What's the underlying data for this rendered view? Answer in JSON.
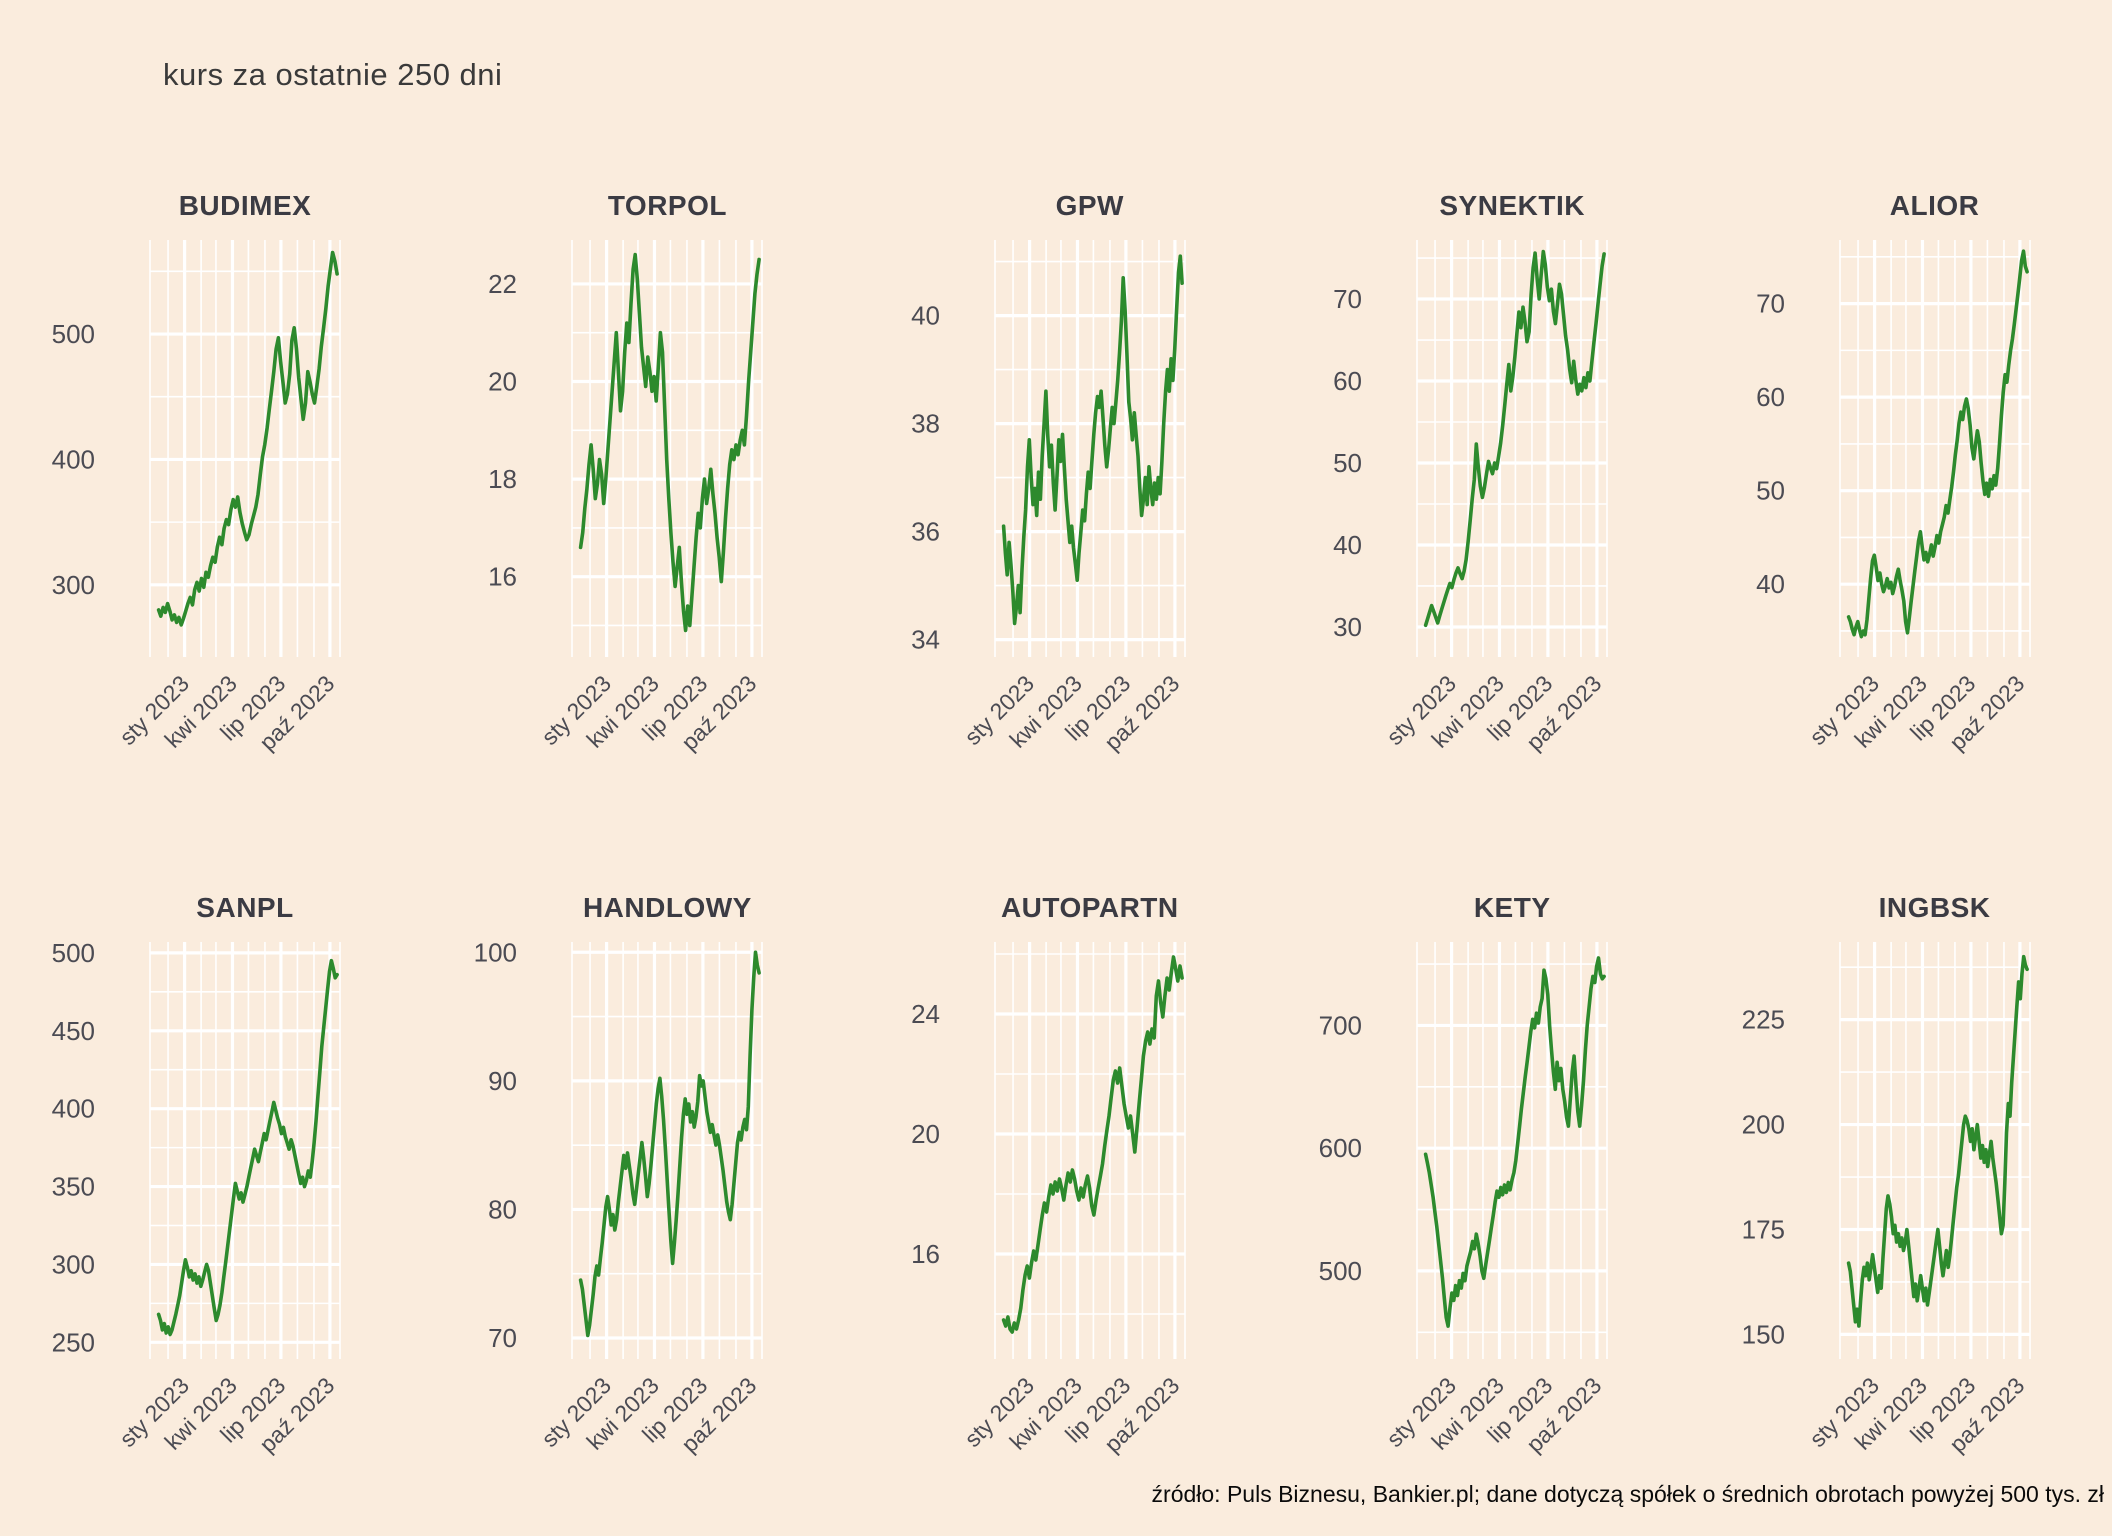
{
  "page": {
    "title": "kurs za ostatnie 250 dni",
    "footer": "źródło: Puls Biznesu, Bankier.pl; dane dotyczą spółek o średnich obrotach powyżej 500 tys. zł"
  },
  "colors": {
    "background": "#faecdd",
    "grid": "#ffffff",
    "line": "#2d8a2d",
    "chart_title_text": "#3b3b43",
    "axis_text": "#4b4b53",
    "footer_text": "#0a0a0a"
  },
  "x_axis": {
    "labels": [
      "sty 2023",
      "kwi 2023",
      "lip 2023",
      "paź 2023"
    ],
    "major_fractions": [
      0.182,
      0.434,
      0.689,
      0.947
    ],
    "minor_fractions": [
      0.0,
      0.095,
      0.269,
      0.347,
      0.518,
      0.605,
      0.776,
      0.863,
      1.0
    ]
  },
  "chart_data": [
    {
      "type": "line",
      "title": "BUDIMEX",
      "ylabel": "",
      "y_ticks": [
        300,
        400,
        500
      ],
      "ylim": [
        252,
        575
      ],
      "values": [
        280,
        275,
        282,
        278,
        285,
        279,
        272,
        276,
        270,
        274,
        268,
        273,
        279,
        285,
        290,
        284,
        296,
        302,
        295,
        305,
        298,
        310,
        306,
        315,
        322,
        318,
        330,
        338,
        332,
        345,
        352,
        348,
        360,
        368,
        362,
        370,
        358,
        349,
        342,
        336,
        340,
        348,
        355,
        362,
        372,
        388,
        402,
        412,
        425,
        440,
        455,
        470,
        488,
        497,
        478,
        462,
        445,
        452,
        468,
        495,
        505,
        488,
        465,
        448,
        432,
        445,
        470,
        462,
        452,
        445,
        458,
        472,
        490,
        505,
        520,
        538,
        552,
        565,
        558,
        548
      ]
    },
    {
      "type": "line",
      "title": "TORPOL",
      "ylabel": "",
      "y_ticks": [
        16,
        18,
        20,
        22
      ],
      "ylim": [
        14.6,
        22.9
      ],
      "values": [
        16.6,
        16.9,
        17.4,
        17.8,
        18.3,
        18.7,
        18.2,
        17.6,
        17.9,
        18.4,
        18.1,
        17.5,
        18.0,
        18.6,
        19.2,
        19.8,
        20.4,
        21.0,
        20.2,
        19.4,
        19.8,
        20.6,
        21.2,
        20.8,
        21.6,
        22.3,
        22.6,
        22.1,
        21.4,
        20.7,
        20.3,
        19.9,
        20.5,
        20.2,
        19.8,
        20.1,
        19.6,
        20.3,
        21.0,
        20.6,
        19.5,
        18.4,
        17.6,
        16.9,
        16.3,
        15.8,
        16.2,
        16.6,
        15.9,
        15.3,
        14.9,
        15.4,
        15.0,
        15.6,
        16.2,
        16.8,
        17.3,
        17.0,
        17.6,
        18.0,
        17.5,
        17.8,
        18.2,
        17.7,
        17.3,
        16.8,
        16.4,
        15.9,
        16.5,
        17.2,
        17.8,
        18.3,
        18.6,
        18.4,
        18.7,
        18.5,
        18.8,
        19.0,
        18.7,
        19.3,
        20.0,
        20.6,
        21.2,
        21.8,
        22.2,
        22.5
      ]
    },
    {
      "type": "line",
      "title": "GPW",
      "ylabel": "",
      "y_ticks": [
        34,
        36,
        38,
        40
      ],
      "ylim": [
        33.9,
        41.4
      ],
      "values": [
        36.1,
        35.6,
        35.2,
        35.8,
        35.4,
        34.9,
        34.3,
        34.6,
        35.0,
        34.5,
        35.3,
        35.9,
        36.4,
        37.2,
        37.7,
        37.0,
        36.5,
        36.8,
        36.3,
        37.1,
        36.6,
        37.4,
        38.0,
        38.6,
        37.8,
        37.2,
        37.6,
        36.9,
        36.4,
        37.0,
        37.7,
        37.3,
        37.8,
        37.2,
        36.6,
        36.2,
        35.8,
        36.1,
        35.7,
        35.4,
        35.1,
        35.6,
        36.0,
        36.4,
        36.2,
        36.7,
        37.1,
        36.8,
        37.3,
        37.8,
        38.2,
        38.5,
        38.3,
        38.6,
        38.1,
        37.6,
        37.2,
        37.5,
        37.9,
        38.3,
        38.0,
        38.4,
        38.8,
        39.3,
        39.9,
        40.7,
        40.1,
        39.3,
        38.4,
        38.1,
        37.7,
        38.2,
        37.8,
        37.4,
        36.8,
        36.3,
        36.6,
        37.0,
        36.5,
        37.2,
        36.8,
        36.5,
        36.9,
        36.6,
        37.0,
        36.7,
        37.3,
        38.0,
        38.6,
        39.0,
        38.6,
        39.2,
        38.8,
        39.4,
        40.1,
        40.8,
        41.1,
        40.6
      ]
    },
    {
      "type": "line",
      "title": "SYNEKTIK",
      "ylabel": "",
      "y_ticks": [
        30,
        40,
        50,
        60,
        70
      ],
      "ylim": [
        27.8,
        77.2
      ],
      "values": [
        30.2,
        31.0,
        31.8,
        32.6,
        31.9,
        31.2,
        30.5,
        31.4,
        32.2,
        33.0,
        33.8,
        34.6,
        35.3,
        34.8,
        35.8,
        36.6,
        37.2,
        36.5,
        35.9,
        36.8,
        38.2,
        40.5,
        43.0,
        45.6,
        48.0,
        52.3,
        49.5,
        47.2,
        45.8,
        47.0,
        48.6,
        50.2,
        49.4,
        48.7,
        50.0,
        49.3,
        50.8,
        52.4,
        54.6,
        57.0,
        59.5,
        62.0,
        58.8,
        60.5,
        63.0,
        65.8,
        68.4,
        66.5,
        69.0,
        67.2,
        64.8,
        66.0,
        70.5,
        73.8,
        75.6,
        72.4,
        70.0,
        73.0,
        75.8,
        74.2,
        71.5,
        69.8,
        71.2,
        68.5,
        67.0,
        69.4,
        71.8,
        70.6,
        68.0,
        65.5,
        63.8,
        61.5,
        59.8,
        62.4,
        60.2,
        58.4,
        59.6,
        58.8,
        60.4,
        59.2,
        61.0,
        60.0,
        62.5,
        64.8,
        67.0,
        69.5,
        71.8,
        74.0,
        75.5
      ]
    },
    {
      "type": "line",
      "title": "ALIOR",
      "ylabel": "",
      "y_ticks": [
        40,
        50,
        60,
        70
      ],
      "ylim": [
        33.5,
        76.8
      ],
      "values": [
        36.5,
        36.0,
        35.2,
        34.6,
        35.4,
        36.0,
        35.1,
        34.4,
        35.0,
        34.6,
        36.2,
        38.4,
        40.6,
        42.5,
        43.1,
        41.8,
        40.4,
        41.2,
        40.0,
        39.2,
        39.8,
        40.6,
        39.6,
        40.2,
        39.0,
        39.8,
        40.8,
        41.6,
        40.4,
        39.4,
        38.2,
        36.0,
        34.8,
        36.4,
        38.2,
        39.8,
        41.4,
        43.0,
        44.6,
        45.6,
        44.0,
        42.6,
        43.4,
        42.4,
        43.2,
        44.2,
        43.0,
        44.0,
        45.2,
        44.4,
        45.6,
        46.4,
        47.2,
        48.4,
        47.6,
        49.0,
        50.4,
        52.0,
        53.8,
        55.4,
        57.2,
        58.4,
        57.6,
        59.0,
        59.8,
        58.8,
        57.0,
        54.6,
        53.4,
        55.0,
        56.4,
        55.2,
        53.0,
        51.0,
        49.6,
        50.8,
        49.4,
        51.2,
        50.2,
        51.6,
        50.6,
        52.4,
        55.0,
        58.0,
        60.5,
        62.4,
        61.6,
        63.4,
        65.0,
        66.2,
        67.8,
        69.4,
        71.0,
        72.8,
        74.6,
        75.6,
        74.0,
        73.4
      ]
    },
    {
      "type": "line",
      "title": "SANPL",
      "ylabel": "",
      "y_ticks": [
        250,
        300,
        350,
        400,
        450,
        500
      ],
      "ylim": [
        247,
        507
      ],
      "values": [
        268,
        264,
        258,
        262,
        256,
        260,
        255,
        258,
        263,
        268,
        274,
        280,
        288,
        296,
        303,
        298,
        292,
        296,
        290,
        294,
        288,
        292,
        286,
        290,
        295,
        300,
        296,
        288,
        280,
        272,
        264,
        268,
        274,
        282,
        292,
        302,
        312,
        322,
        332,
        342,
        352,
        347,
        342,
        346,
        340,
        345,
        350,
        356,
        362,
        368,
        374,
        370,
        366,
        372,
        378,
        384,
        380,
        386,
        392,
        398,
        404,
        399,
        394,
        390,
        384,
        388,
        382,
        378,
        374,
        380,
        376,
        370,
        364,
        358,
        352,
        356,
        350,
        354,
        360,
        356,
        366,
        378,
        392,
        408,
        424,
        440,
        452,
        464,
        476,
        488,
        495,
        490,
        484,
        486
      ]
    },
    {
      "type": "line",
      "title": "HANDLOWY",
      "ylabel": "",
      "y_ticks": [
        70,
        80,
        90,
        100
      ],
      "ylim": [
        69.3,
        100.8
      ],
      "values": [
        74.5,
        73.8,
        72.6,
        71.4,
        70.2,
        71.0,
        72.2,
        73.4,
        74.8,
        75.6,
        74.9,
        76.2,
        77.4,
        78.8,
        80.2,
        81.0,
        80.0,
        78.8,
        79.6,
        78.4,
        79.2,
        80.6,
        81.8,
        83.0,
        84.2,
        83.2,
        84.4,
        83.4,
        82.4,
        81.2,
        80.4,
        81.6,
        82.8,
        84.0,
        85.2,
        84.0,
        82.6,
        81.0,
        82.0,
        83.4,
        85.0,
        86.6,
        88.2,
        89.4,
        90.2,
        88.8,
        87.0,
        84.8,
        82.4,
        80.0,
        77.6,
        75.8,
        77.4,
        79.2,
        81.2,
        83.4,
        85.6,
        87.4,
        88.6,
        87.4,
        88.2,
        86.8,
        87.6,
        86.4,
        87.2,
        88.4,
        90.4,
        89.6,
        90.0,
        88.8,
        87.6,
        86.8,
        86.0,
        86.6,
        85.8,
        85.0,
        85.8,
        85.0,
        84.0,
        83.0,
        81.8,
        80.6,
        79.8,
        79.2,
        80.4,
        82.0,
        83.6,
        85.2,
        86.0,
        85.4,
        86.4,
        87.0,
        86.2,
        88.0,
        92.0,
        95.5,
        98.0,
        100.0,
        99.0,
        98.4
      ]
    },
    {
      "type": "line",
      "title": "AUTOPARTN",
      "ylabel": "",
      "y_ticks": [
        16,
        20,
        24
      ],
      "ylim": [
        12.9,
        26.4
      ],
      "values": [
        13.8,
        13.6,
        13.9,
        13.5,
        13.4,
        13.7,
        13.5,
        13.8,
        14.2,
        14.8,
        15.3,
        15.6,
        15.2,
        15.7,
        16.1,
        15.8,
        16.3,
        16.8,
        17.3,
        17.7,
        17.4,
        17.9,
        18.3,
        18.0,
        18.4,
        18.1,
        18.5,
        18.2,
        17.8,
        18.3,
        18.7,
        18.4,
        18.8,
        18.5,
        18.1,
        17.8,
        18.2,
        17.9,
        18.3,
        18.6,
        18.2,
        17.6,
        17.3,
        17.8,
        18.2,
        18.6,
        19.0,
        19.6,
        20.1,
        20.6,
        21.2,
        21.8,
        22.1,
        21.7,
        22.2,
        21.6,
        21.0,
        20.6,
        20.2,
        20.6,
        20.0,
        19.4,
        20.2,
        21.0,
        21.8,
        22.6,
        23.1,
        23.4,
        23.0,
        23.5,
        23.2,
        24.6,
        25.1,
        24.4,
        23.9,
        24.6,
        25.2,
        24.8,
        25.4,
        25.9,
        25.5,
        25.1,
        25.6,
        25.2
      ]
    },
    {
      "type": "line",
      "title": "KETY",
      "ylabel": "",
      "y_ticks": [
        500,
        600,
        700
      ],
      "ylim": [
        438,
        768
      ],
      "values": [
        595,
        588,
        580,
        570,
        560,
        548,
        536,
        522,
        508,
        494,
        478,
        462,
        455,
        470,
        482,
        476,
        488,
        480,
        492,
        486,
        498,
        492,
        504,
        510,
        516,
        524,
        518,
        530,
        522,
        512,
        500,
        494,
        505,
        515,
        525,
        535,
        545,
        556,
        565,
        560,
        568,
        562,
        570,
        564,
        572,
        566,
        574,
        580,
        590,
        604,
        618,
        632,
        645,
        658,
        670,
        682,
        695,
        705,
        698,
        710,
        702,
        715,
        722,
        745,
        738,
        725,
        700,
        680,
        662,
        648,
        670,
        655,
        665,
        648,
        638,
        625,
        618,
        640,
        662,
        675,
        652,
        630,
        618,
        635,
        655,
        680,
        700,
        715,
        730,
        740,
        735,
        748,
        755,
        742,
        738,
        740
      ]
    },
    {
      "type": "line",
      "title": "INGBSK",
      "ylabel": "",
      "y_ticks": [
        150,
        175,
        200,
        225
      ],
      "ylim": [
        147,
        243.5
      ],
      "values": [
        167,
        165,
        161,
        157,
        153,
        156,
        152,
        158,
        163,
        166,
        164,
        167,
        163,
        166,
        169,
        166,
        163,
        160,
        164,
        161,
        168,
        174,
        180,
        183,
        181,
        178,
        174,
        176,
        172,
        174,
        171,
        173,
        170,
        172,
        175,
        171,
        167,
        163,
        159,
        162,
        158,
        161,
        164,
        161,
        158,
        161,
        157,
        160,
        163,
        166,
        169,
        172,
        175,
        171,
        167,
        164,
        167,
        170,
        166,
        169,
        173,
        177,
        181,
        185,
        188,
        192,
        196,
        200,
        202,
        201,
        199,
        196,
        199,
        194,
        197,
        200,
        196,
        192,
        195,
        191,
        194,
        190,
        193,
        196,
        192,
        189,
        186,
        182,
        178,
        174,
        176,
        186,
        198,
        205,
        202,
        210,
        216,
        222,
        228,
        234,
        230,
        236,
        240,
        238,
        237
      ]
    }
  ]
}
